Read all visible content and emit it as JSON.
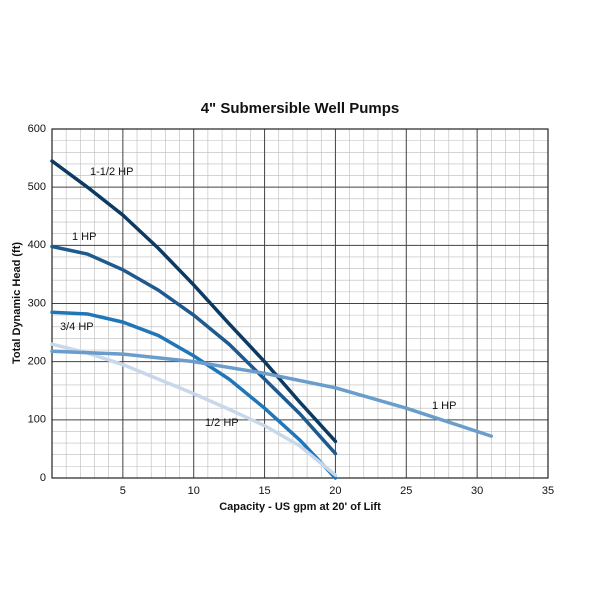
{
  "chart_data": {
    "type": "line",
    "title": "4\" Submersible Well Pumps",
    "x_label": "Capacity - US gpm at 20' of Lift",
    "y_label": "Total Dynamic Head (ft)",
    "xlim": [
      0,
      35
    ],
    "xticks": [
      5,
      10,
      15,
      20,
      25,
      30,
      35
    ],
    "ylim": [
      0,
      600
    ],
    "yticks": [
      0,
      100,
      200,
      300,
      400,
      500,
      600
    ],
    "grid": true,
    "series": [
      {
        "name": "1-1/2 HP",
        "color": "#0d3a63",
        "x": [
          0,
          2.5,
          5,
          7.5,
          10,
          12.5,
          15,
          17.5,
          20
        ],
        "values": [
          545,
          500,
          452,
          395,
          332,
          265,
          200,
          130,
          63
        ]
      },
      {
        "name": "1 HP",
        "color": "#1f5a8e",
        "x": [
          0,
          2.5,
          5,
          7.5,
          10,
          12.5,
          15,
          17.5,
          20
        ],
        "values": [
          398,
          385,
          358,
          323,
          280,
          230,
          170,
          110,
          42
        ]
      },
      {
        "name": "3/4 HP",
        "color": "#1f76b8",
        "x": [
          0,
          2.5,
          5,
          7.5,
          10,
          12.5,
          15,
          17.5,
          20
        ],
        "values": [
          285,
          282,
          268,
          245,
          210,
          170,
          120,
          65,
          0
        ]
      },
      {
        "name": "1/2 HP",
        "color": "#c8d8ea",
        "x": [
          0,
          2.5,
          5,
          7.5,
          10,
          12.5,
          15,
          17.5,
          20
        ],
        "values": [
          230,
          215,
          195,
          170,
          145,
          118,
          90,
          55,
          5
        ]
      },
      {
        "name": "1 HP",
        "color": "#6a9ccc",
        "x": [
          0,
          5,
          10,
          15,
          20,
          25,
          31
        ],
        "values": [
          218,
          213,
          200,
          180,
          155,
          120,
          72
        ]
      }
    ]
  }
}
